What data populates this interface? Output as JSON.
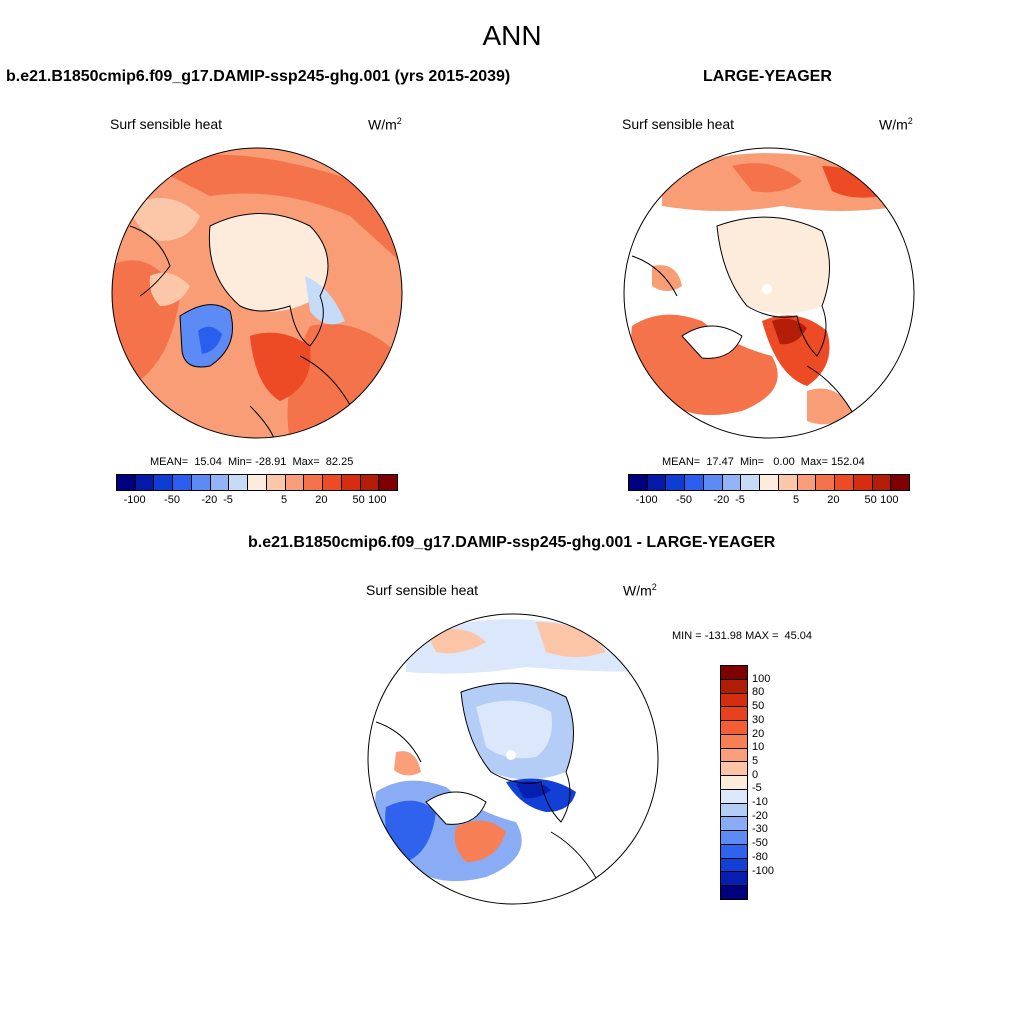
{
  "main_title": "ANN",
  "left_panel": {
    "title": "b.e21.B1850cmip6.f09_g17.DAMIP-ssp245-ghg.001 (yrs 2015-2039)",
    "variable": "Surf sensible heat",
    "units": "W/m",
    "units_sup": "2",
    "stats": "MEAN=  15.04  Min= -28.91  Max=  82.25"
  },
  "right_panel": {
    "title": "LARGE-YEAGER",
    "variable": "Surf sensible heat",
    "units": "W/m",
    "units_sup": "2",
    "stats": "MEAN=  17.47  Min=   0.00  Max= 152.04"
  },
  "diff_panel": {
    "title": "b.e21.B1850cmip6.f09_g17.DAMIP-ssp245-ghg.001 - LARGE-YEAGER",
    "variable": "Surf sensible heat",
    "units": "W/m",
    "units_sup": "2",
    "stats": "MIN = -131.98 MAX =  45.04"
  },
  "horizontal_colorbar": {
    "tick_labels": [
      "-100",
      "-50",
      "-20",
      "-5",
      "5",
      "20",
      "50",
      "100"
    ],
    "colors": [
      "#00007f",
      "#0519a8",
      "#0f3dd2",
      "#2a5fee",
      "#5d8bf5",
      "#93b5f7",
      "#c6dbf8",
      "#fdebdc",
      "#fcc7a9",
      "#f99d76",
      "#f5734b",
      "#ed4a26",
      "#d42d10",
      "#b31e08",
      "#7f0000"
    ]
  },
  "vertical_colorbar": {
    "tick_labels": [
      "100",
      "80",
      "50",
      "30",
      "20",
      "10",
      "5",
      "0",
      "-5",
      "-10",
      "-20",
      "-30",
      "-50",
      "-80",
      "-100"
    ],
    "colors": [
      "#7f0000",
      "#b01c06",
      "#d42d10",
      "#e8411e",
      "#f35e34",
      "#f77f55",
      "#fa9f79",
      "#fcc5a7",
      "#fdebdc",
      "#dbe8fb",
      "#b4cdf7",
      "#8aacf4",
      "#5d8bf5",
      "#2f63ee",
      "#1240d6",
      "#061fb0",
      "#00007f"
    ]
  },
  "map_colors": {
    "land_outline": "#000000",
    "no_data": "#ffffff",
    "border": "#000000"
  }
}
